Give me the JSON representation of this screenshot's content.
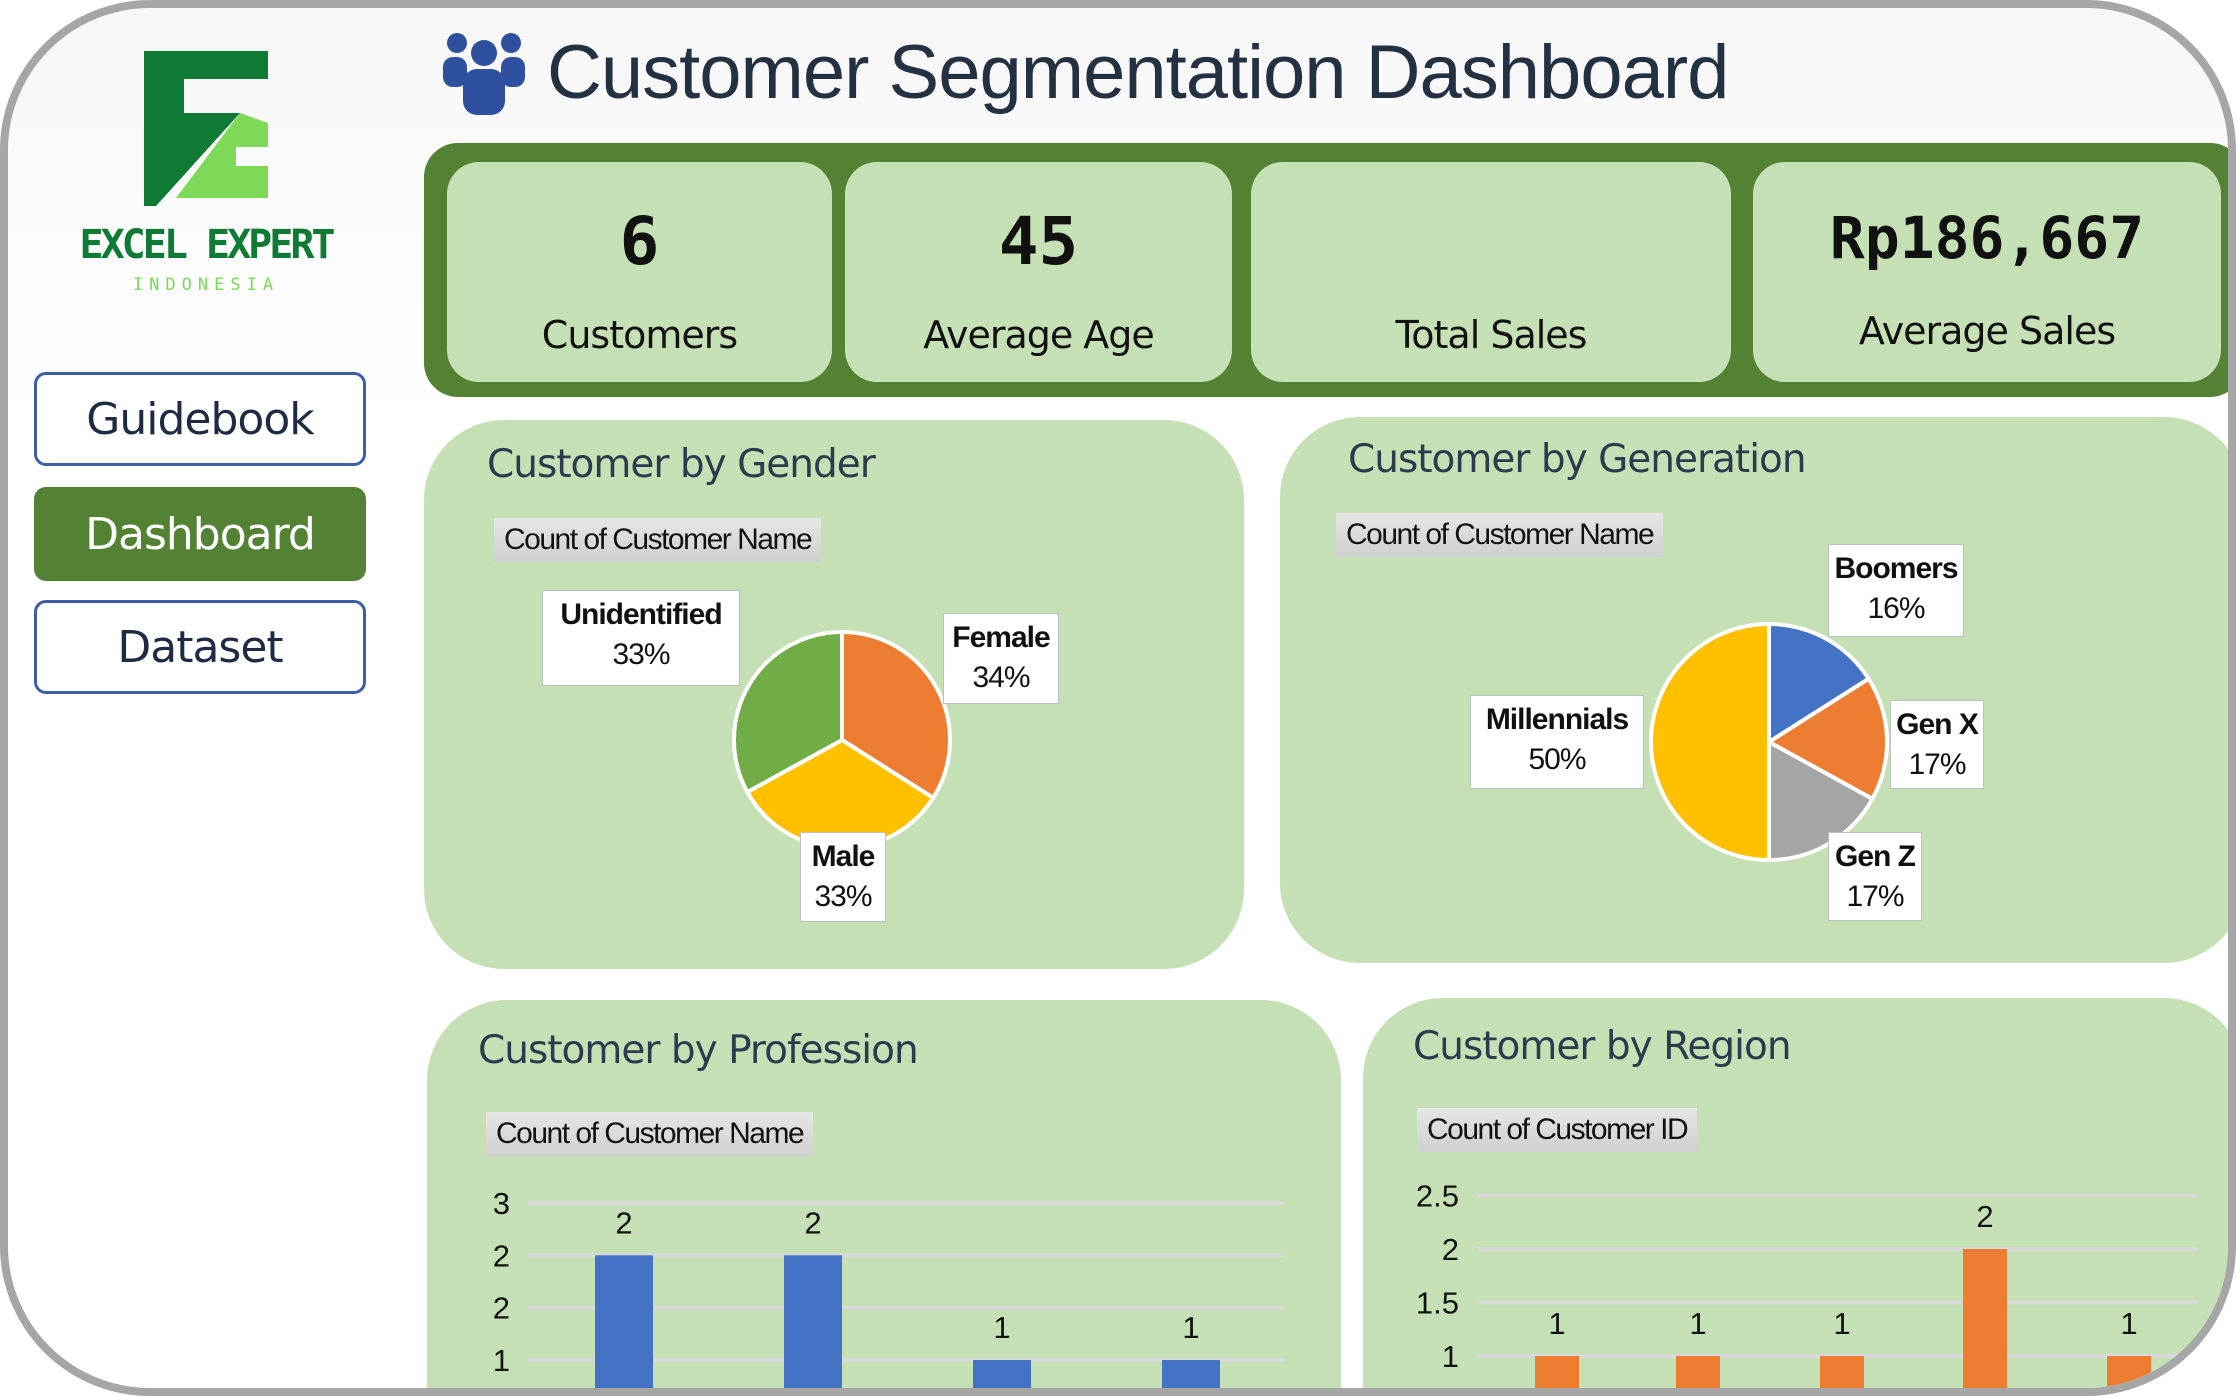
{
  "logo": {
    "name": "EXCEL EXPERT",
    "sub": "INDONESIA",
    "colors": {
      "dark": "#0e7a34",
      "light": "#7ed957"
    }
  },
  "nav": [
    {
      "label": "Guidebook",
      "active": false
    },
    {
      "label": "Dashboard",
      "active": true
    },
    {
      "label": "Dataset",
      "active": false
    }
  ],
  "header": {
    "title": "Customer Segmentation Dashboard",
    "icon": "users-icon",
    "icon_color": "#2f4f9f"
  },
  "kpis": [
    {
      "value": "6",
      "label": "Customers"
    },
    {
      "value": "45",
      "label": "Average Age"
    },
    {
      "value": "",
      "label": "Total Sales"
    },
    {
      "value": "Rp186,667",
      "label": "Average Sales"
    }
  ],
  "colors": {
    "band": "#548235",
    "card": "#c5e0b4",
    "grid": "#d9d9d9"
  },
  "chart_data": [
    {
      "type": "pie",
      "title": "Customer by Gender",
      "field": "Count of Customer Name",
      "slices": [
        {
          "label": "Female",
          "pct": "34%",
          "value": 34,
          "color": "#ed7d31"
        },
        {
          "label": "Male",
          "pct": "33%",
          "value": 33,
          "color": "#ffc000"
        },
        {
          "label": "Unidentified",
          "pct": "33%",
          "value": 33,
          "color": "#70ad47"
        }
      ]
    },
    {
      "type": "pie",
      "title": "Customer by Generation",
      "field": "Count of Customer Name",
      "slices": [
        {
          "label": "Boomers",
          "pct": "16%",
          "value": 16,
          "color": "#4472c4"
        },
        {
          "label": "Gen X",
          "pct": "17%",
          "value": 17,
          "color": "#ed7d31"
        },
        {
          "label": "Gen Z",
          "pct": "17%",
          "value": 17,
          "color": "#a5a5a5"
        },
        {
          "label": "Millennials",
          "pct": "50%",
          "value": 50,
          "color": "#ffc000"
        }
      ]
    },
    {
      "type": "bar",
      "title": "Customer by Profession",
      "field": "Count of Customer Name",
      "color": "#4472c4",
      "values": [
        2,
        2,
        1,
        1
      ],
      "data_labels": [
        "2",
        "2",
        "1",
        "1"
      ],
      "tick_values": [
        2.5,
        2,
        1.5,
        1
      ],
      "tick_labels": [
        "3",
        "2",
        "2",
        "1"
      ],
      "grid": true
    },
    {
      "type": "bar",
      "title": "Customer by Region",
      "field": "Count of Customer ID",
      "color": "#ed7d31",
      "values": [
        1,
        1,
        1,
        2,
        1
      ],
      "data_labels": [
        "1",
        "1",
        "1",
        "2",
        "1"
      ],
      "tick_values": [
        2.5,
        2,
        1.5,
        1
      ],
      "tick_labels": [
        "2.5",
        "2",
        "1.5",
        "1"
      ],
      "grid": true
    }
  ]
}
